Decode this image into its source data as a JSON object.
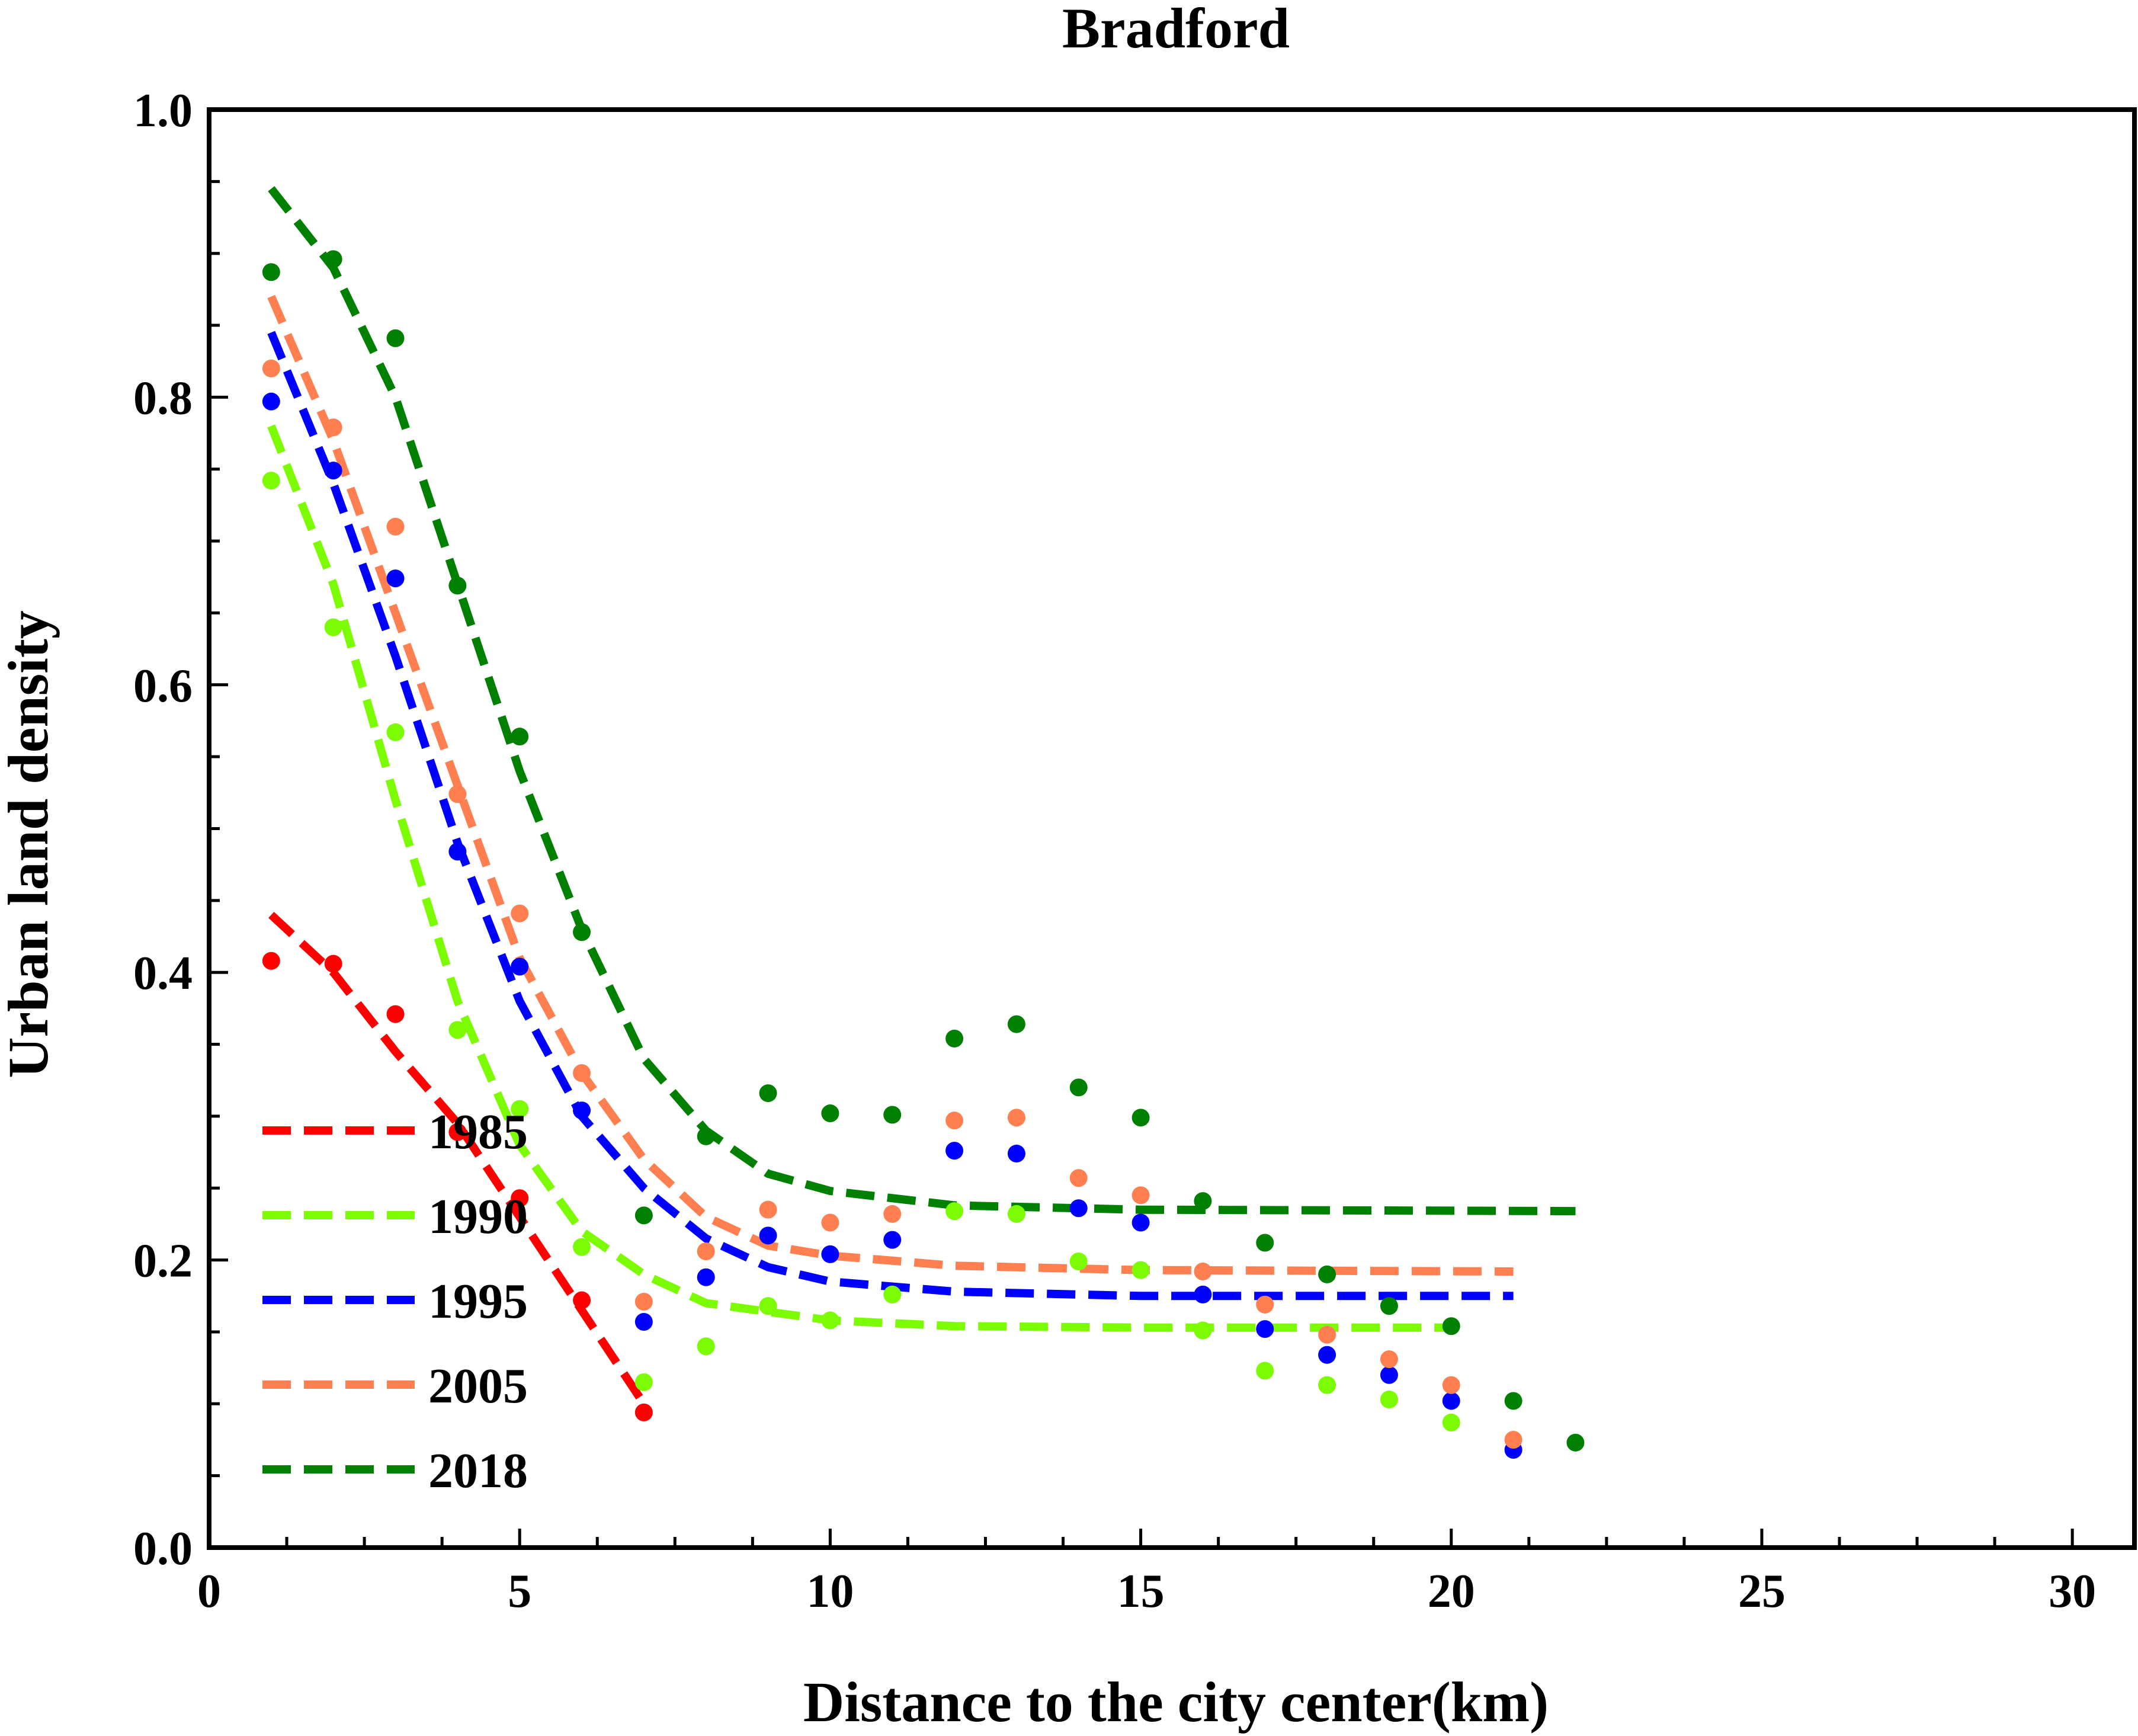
{
  "chart_data": {
    "type": "scatter",
    "title": "Bradford",
    "xlabel": "Distance to the city center(km)",
    "ylabel": "Urban land density",
    "xlim": [
      0,
      31
    ],
    "ylim": [
      0,
      1.0
    ],
    "x_ticks": [
      0,
      5,
      10,
      15,
      20,
      25,
      30
    ],
    "y_ticks": [
      0.0,
      0.2,
      0.4,
      0.6,
      0.8,
      1.0
    ],
    "x_tick_labels": [
      "0",
      "5",
      "10",
      "15",
      "20",
      "25",
      "30"
    ],
    "y_tick_labels": [
      "0.0",
      "0.2",
      "0.4",
      "0.6",
      "0.8",
      "1.0"
    ],
    "grid": false,
    "legend_position": "bottom-left",
    "series": [
      {
        "name": "1985",
        "color": "#ff0000",
        "points": [
          [
            1,
            0.408
          ],
          [
            2,
            0.406
          ],
          [
            3,
            0.371
          ],
          [
            4,
            0.289
          ],
          [
            5,
            0.243
          ],
          [
            6,
            0.172
          ],
          [
            7,
            0.094
          ]
        ],
        "fit": [
          [
            1,
            0.44
          ],
          [
            2,
            0.4
          ],
          [
            3,
            0.345
          ],
          [
            4,
            0.295
          ],
          [
            5,
            0.23
          ],
          [
            6,
            0.165
          ],
          [
            7,
            0.1
          ]
        ]
      },
      {
        "name": "1990",
        "color": "#7cfc00",
        "points": [
          [
            1,
            0.742
          ],
          [
            2,
            0.64
          ],
          [
            3,
            0.567
          ],
          [
            4,
            0.36
          ],
          [
            5,
            0.305
          ],
          [
            6,
            0.209
          ],
          [
            7,
            0.115
          ],
          [
            8,
            0.14
          ],
          [
            9,
            0.168
          ],
          [
            10,
            0.158
          ],
          [
            11,
            0.176
          ],
          [
            12,
            0.234
          ],
          [
            13,
            0.232
          ],
          [
            14,
            0.199
          ],
          [
            15,
            0.193
          ],
          [
            16,
            0.151
          ],
          [
            17,
            0.123
          ],
          [
            18,
            0.113
          ],
          [
            19,
            0.103
          ],
          [
            20,
            0.087
          ]
        ],
        "fit": [
          [
            1,
            0.78
          ],
          [
            2,
            0.67
          ],
          [
            3,
            0.52
          ],
          [
            4,
            0.38
          ],
          [
            5,
            0.28
          ],
          [
            6,
            0.22
          ],
          [
            7,
            0.19
          ],
          [
            8,
            0.17
          ],
          [
            10,
            0.158
          ],
          [
            12,
            0.154
          ],
          [
            15,
            0.153
          ],
          [
            20,
            0.153
          ]
        ]
      },
      {
        "name": "1995",
        "color": "#0000ff",
        "points": [
          [
            1,
            0.797
          ],
          [
            2,
            0.749
          ],
          [
            3,
            0.674
          ],
          [
            4,
            0.484
          ],
          [
            5,
            0.404
          ],
          [
            6,
            0.304
          ],
          [
            7,
            0.157
          ],
          [
            8,
            0.188
          ],
          [
            9,
            0.217
          ],
          [
            10,
            0.204
          ],
          [
            11,
            0.214
          ],
          [
            12,
            0.276
          ],
          [
            13,
            0.274
          ],
          [
            14,
            0.236
          ],
          [
            15,
            0.226
          ],
          [
            16,
            0.176
          ],
          [
            17,
            0.152
          ],
          [
            18,
            0.134
          ],
          [
            19,
            0.12
          ],
          [
            20,
            0.102
          ],
          [
            21,
            0.068
          ]
        ],
        "fit": [
          [
            1,
            0.845
          ],
          [
            2,
            0.74
          ],
          [
            3,
            0.62
          ],
          [
            4,
            0.49
          ],
          [
            5,
            0.38
          ],
          [
            6,
            0.3
          ],
          [
            7,
            0.25
          ],
          [
            8,
            0.215
          ],
          [
            9,
            0.195
          ],
          [
            10,
            0.185
          ],
          [
            12,
            0.178
          ],
          [
            15,
            0.175
          ],
          [
            21,
            0.175
          ]
        ]
      },
      {
        "name": "2005",
        "color": "#ff7f50",
        "points": [
          [
            1,
            0.82
          ],
          [
            2,
            0.779
          ],
          [
            3,
            0.71
          ],
          [
            4,
            0.524
          ],
          [
            5,
            0.441
          ],
          [
            6,
            0.33
          ],
          [
            7,
            0.171
          ],
          [
            8,
            0.206
          ],
          [
            9,
            0.235
          ],
          [
            10,
            0.226
          ],
          [
            11,
            0.232
          ],
          [
            12,
            0.297
          ],
          [
            13,
            0.299
          ],
          [
            14,
            0.257
          ],
          [
            15,
            0.245
          ],
          [
            16,
            0.192
          ],
          [
            17,
            0.169
          ],
          [
            18,
            0.148
          ],
          [
            19,
            0.131
          ],
          [
            20,
            0.113
          ],
          [
            21,
            0.075
          ]
        ],
        "fit": [
          [
            1,
            0.87
          ],
          [
            2,
            0.77
          ],
          [
            3,
            0.65
          ],
          [
            4,
            0.53
          ],
          [
            5,
            0.41
          ],
          [
            6,
            0.33
          ],
          [
            7,
            0.27
          ],
          [
            8,
            0.23
          ],
          [
            9,
            0.21
          ],
          [
            10,
            0.203
          ],
          [
            12,
            0.196
          ],
          [
            15,
            0.193
          ],
          [
            21,
            0.192
          ]
        ]
      },
      {
        "name": "2018",
        "color": "#008000",
        "points": [
          [
            1,
            0.887
          ],
          [
            2,
            0.896
          ],
          [
            3,
            0.841
          ],
          [
            4,
            0.669
          ],
          [
            5,
            0.564
          ],
          [
            6,
            0.428
          ],
          [
            7,
            0.231
          ],
          [
            8,
            0.286
          ],
          [
            9,
            0.316
          ],
          [
            10,
            0.302
          ],
          [
            11,
            0.301
          ],
          [
            12,
            0.354
          ],
          [
            13,
            0.364
          ],
          [
            14,
            0.32
          ],
          [
            15,
            0.299
          ],
          [
            16,
            0.241
          ],
          [
            17,
            0.212
          ],
          [
            18,
            0.19
          ],
          [
            19,
            0.168
          ],
          [
            20,
            0.154
          ],
          [
            21,
            0.102
          ],
          [
            22,
            0.073
          ]
        ],
        "fit": [
          [
            1,
            0.945
          ],
          [
            2,
            0.89
          ],
          [
            3,
            0.8
          ],
          [
            4,
            0.67
          ],
          [
            5,
            0.54
          ],
          [
            6,
            0.43
          ],
          [
            7,
            0.34
          ],
          [
            8,
            0.29
          ],
          [
            9,
            0.26
          ],
          [
            10,
            0.248
          ],
          [
            12,
            0.238
          ],
          [
            15,
            0.235
          ],
          [
            22,
            0.234
          ]
        ]
      }
    ]
  }
}
